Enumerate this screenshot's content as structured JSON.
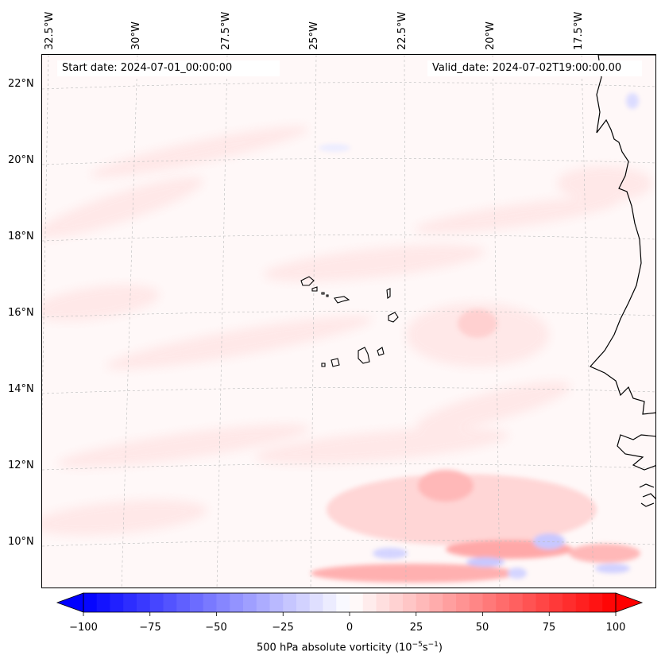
{
  "map": {
    "start_date": "Start date: 2024-07-01_00:00:00",
    "valid_date": "Valid_date: 2024-07-02T19:00:00.00",
    "lon_labels": [
      "32.5°W",
      "30°W",
      "27.5°W",
      "25°W",
      "22.5°W",
      "20°W",
      "17.5°W"
    ],
    "lat_labels": [
      "22°N",
      "20°N",
      "18°N",
      "16°N",
      "14°N",
      "12°N",
      "10°N"
    ],
    "land_color": "#000000",
    "background_color": "#fff8f8"
  },
  "colorbar": {
    "ticks": [
      "−100",
      "−75",
      "−50",
      "−25",
      "0",
      "25",
      "50",
      "75",
      "100"
    ],
    "min": -100,
    "max": 100,
    "step": 5,
    "label_main": "500 hPa absolute vorticity (10",
    "label_exp1": "−5",
    "label_mid": "s",
    "label_exp2": "−1",
    "label_end": ")",
    "low_color": "#0000ff",
    "mid_color": "#ffffff",
    "high_color": "#ff0000"
  }
}
